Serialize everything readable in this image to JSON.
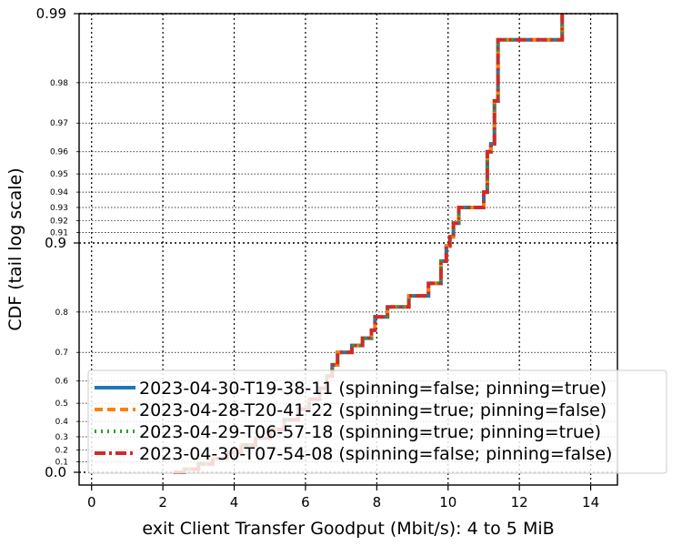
{
  "chart_data": {
    "type": "line",
    "title": "",
    "xlabel": "exit Client Transfer Goodput (Mbit/s): 4 to 5 MiB",
    "ylabel": "CDF (tail log scale)",
    "xlim": [
      -0.35,
      14.75
    ],
    "y_scale": "tail-log",
    "ylim": [
      0.0,
      0.99
    ],
    "x_ticks": [
      0,
      2,
      4,
      6,
      8,
      10,
      12,
      14
    ],
    "x_tick_labels": [
      "0",
      "2",
      "4",
      "6",
      "8",
      "10",
      "12",
      "14"
    ],
    "y_major_ticks": [
      0.0,
      0.9,
      0.99
    ],
    "y_major_tick_labels": [
      "0.0",
      "0.9",
      "0.99"
    ],
    "y_minor_ticks": [
      0.1,
      0.2,
      0.3,
      0.4,
      0.5,
      0.6,
      0.7,
      0.8,
      0.91,
      0.92,
      0.93,
      0.94,
      0.95,
      0.96,
      0.97,
      0.98
    ],
    "y_minor_tick_labels": [
      "0.1",
      "0.2",
      "0.3",
      "0.4",
      "0.5",
      "0.6",
      "0.7",
      "0.8",
      "0.91",
      "0.92",
      "0.93",
      "0.94",
      "0.95",
      "0.96",
      "0.97",
      "0.98"
    ],
    "grid": true,
    "legend_position": "lower-right",
    "series": [
      {
        "name": "2023-04-30-T19-38-11 (spinning=false; pinning=true)",
        "color": "#1f77b4",
        "style": "solid"
      },
      {
        "name": "2023-04-28-T20-41-22 (spinning=true; pinning=false)",
        "color": "#ff7f0e",
        "style": "dashed"
      },
      {
        "name": "2023-04-29-T06-57-18 (spinning=true; pinning=true)",
        "color": "#2ca02c",
        "style": "dotted"
      },
      {
        "name": "2023-04-30-T07-54-08 (spinning=false; pinning=false)",
        "color": "#d62728",
        "style": "dashdot"
      }
    ],
    "cdf_points": [
      [
        2.3,
        0.0
      ],
      [
        2.6,
        0.03
      ],
      [
        3.0,
        0.08
      ],
      [
        3.4,
        0.13
      ],
      [
        3.8,
        0.18
      ],
      [
        4.2,
        0.24
      ],
      [
        4.6,
        0.29
      ],
      [
        5.0,
        0.35
      ],
      [
        5.4,
        0.41
      ],
      [
        5.8,
        0.47
      ],
      [
        6.1,
        0.52
      ],
      [
        6.4,
        0.57
      ],
      [
        6.6,
        0.62
      ],
      [
        6.75,
        0.66
      ],
      [
        6.9,
        0.7
      ],
      [
        7.3,
        0.72
      ],
      [
        7.6,
        0.74
      ],
      [
        7.85,
        0.76
      ],
      [
        7.95,
        0.79
      ],
      [
        8.3,
        0.81
      ],
      [
        8.9,
        0.83
      ],
      [
        9.45,
        0.85
      ],
      [
        9.8,
        0.88
      ],
      [
        9.95,
        0.897
      ],
      [
        10.05,
        0.906
      ],
      [
        10.15,
        0.918
      ],
      [
        10.3,
        0.93
      ],
      [
        11.0,
        0.94
      ],
      [
        11.1,
        0.96
      ],
      [
        11.2,
        0.963
      ],
      [
        11.3,
        0.976
      ],
      [
        11.4,
        0.987
      ],
      [
        13.2,
        0.99
      ]
    ]
  }
}
